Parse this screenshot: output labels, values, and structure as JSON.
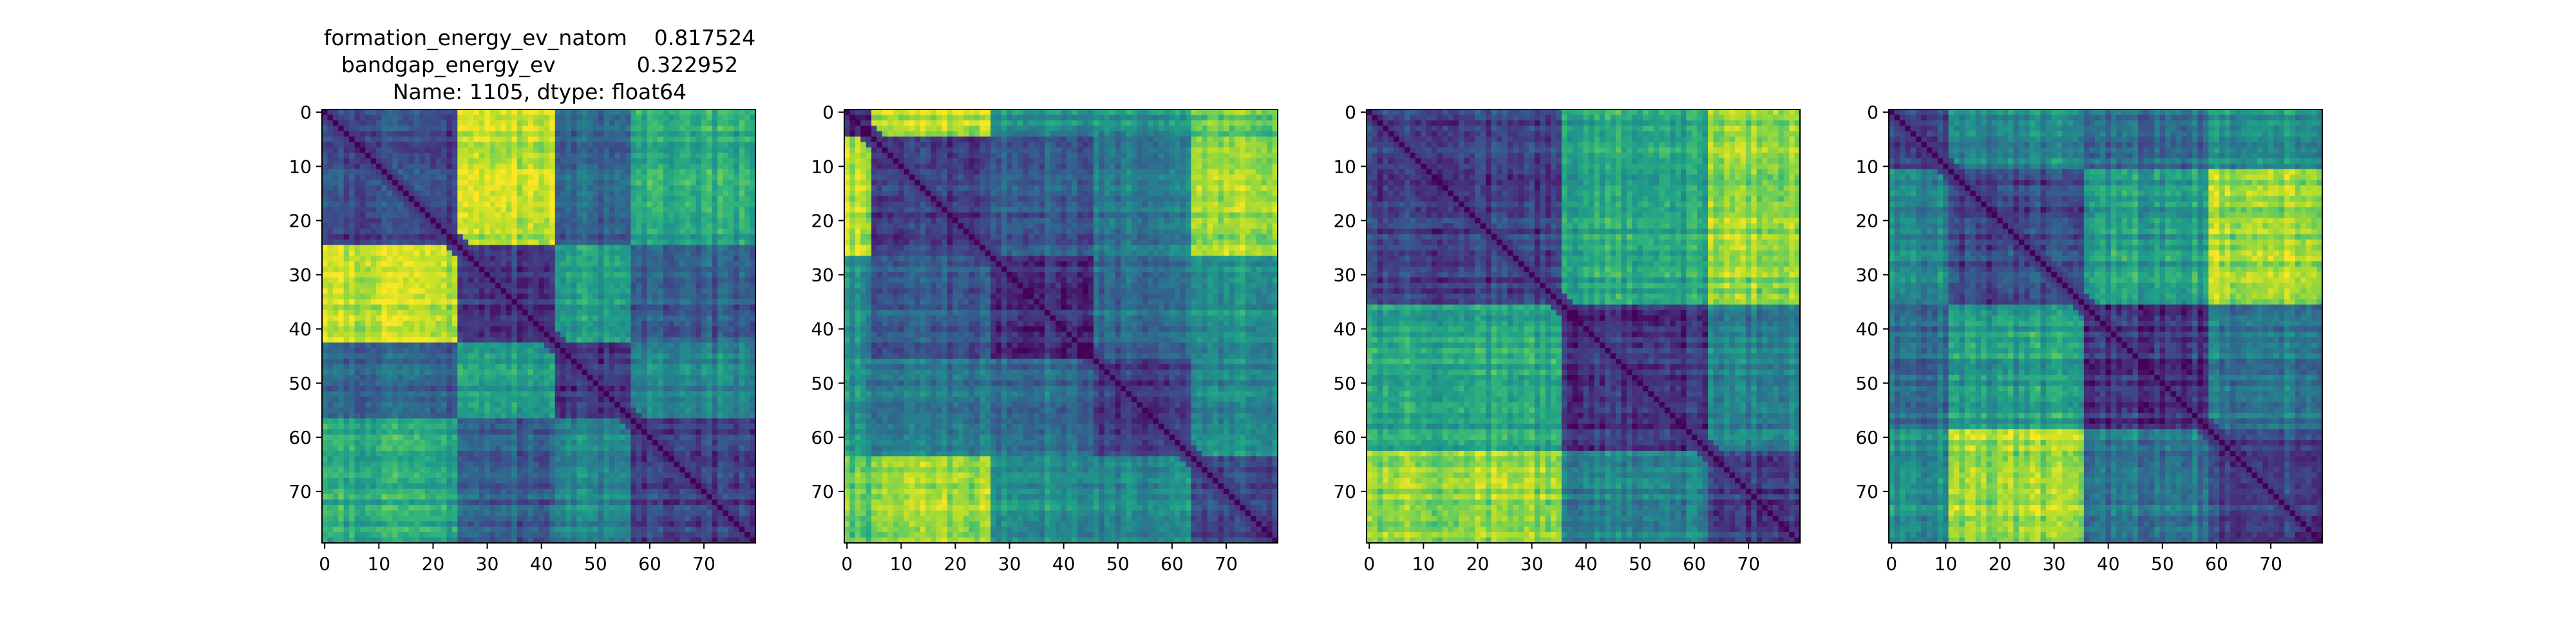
{
  "title_lines": [
    "formation_energy_ev_natom    0.817524",
    "bandgap_energy_ev            0.322952",
    "Name: 1105, dtype: float64"
  ],
  "chart_data": [
    {
      "type": "heatmap",
      "rows": 80,
      "cols": 80,
      "colormap": "viridis",
      "xticks": [
        0,
        10,
        20,
        30,
        40,
        50,
        60,
        70
      ],
      "yticks": [
        0,
        10,
        20,
        30,
        40,
        50,
        60,
        70
      ],
      "xlim": [
        0,
        79
      ],
      "ylim": [
        79,
        0
      ],
      "blocks": [
        [
          0,
          25
        ],
        [
          25,
          43
        ],
        [
          43,
          57
        ],
        [
          57,
          80
        ]
      ],
      "block_means": [
        [
          0.2,
          0.9,
          0.3,
          0.6
        ],
        [
          0.9,
          0.15,
          0.55,
          0.3
        ],
        [
          0.3,
          0.55,
          0.15,
          0.45
        ],
        [
          0.6,
          0.3,
          0.45,
          0.2
        ]
      ]
    },
    {
      "type": "heatmap",
      "rows": 80,
      "cols": 80,
      "colormap": "viridis",
      "xticks": [
        0,
        10,
        20,
        30,
        40,
        50,
        60,
        70
      ],
      "yticks": [
        0,
        10,
        20,
        30,
        40,
        50,
        60,
        70
      ],
      "xlim": [
        0,
        79
      ],
      "ylim": [
        79,
        0
      ],
      "blocks": [
        [
          0,
          5
        ],
        [
          5,
          27
        ],
        [
          27,
          46
        ],
        [
          46,
          64
        ],
        [
          64,
          80
        ]
      ],
      "block_means": [
        [
          0.1,
          0.9,
          0.5,
          0.5,
          0.75
        ],
        [
          0.9,
          0.2,
          0.3,
          0.4,
          0.85
        ],
        [
          0.5,
          0.3,
          0.15,
          0.35,
          0.5
        ],
        [
          0.5,
          0.4,
          0.35,
          0.15,
          0.45
        ],
        [
          0.75,
          0.85,
          0.5,
          0.45,
          0.2
        ]
      ]
    },
    {
      "type": "heatmap",
      "rows": 80,
      "cols": 80,
      "colormap": "viridis",
      "xticks": [
        0,
        10,
        20,
        30,
        40,
        50,
        60,
        70
      ],
      "yticks": [
        0,
        10,
        20,
        30,
        40,
        50,
        60,
        70
      ],
      "xlim": [
        0,
        79
      ],
      "ylim": [
        79,
        0
      ],
      "blocks": [
        [
          0,
          36
        ],
        [
          36,
          63
        ],
        [
          63,
          80
        ]
      ],
      "block_means": [
        [
          0.2,
          0.6,
          0.85
        ],
        [
          0.6,
          0.15,
          0.45
        ],
        [
          0.85,
          0.45,
          0.2
        ]
      ]
    },
    {
      "type": "heatmap",
      "rows": 80,
      "cols": 80,
      "colormap": "viridis",
      "xticks": [
        0,
        10,
        20,
        30,
        40,
        50,
        60,
        70
      ],
      "yticks": [
        0,
        10,
        20,
        30,
        40,
        50,
        60,
        70
      ],
      "xlim": [
        0,
        79
      ],
      "ylim": [
        79,
        0
      ],
      "blocks": [
        [
          0,
          11
        ],
        [
          11,
          36
        ],
        [
          36,
          59
        ],
        [
          59,
          80
        ]
      ],
      "block_means": [
        [
          0.2,
          0.45,
          0.35,
          0.5
        ],
        [
          0.45,
          0.2,
          0.55,
          0.85
        ],
        [
          0.35,
          0.55,
          0.15,
          0.4
        ],
        [
          0.5,
          0.85,
          0.4,
          0.2
        ]
      ]
    }
  ]
}
